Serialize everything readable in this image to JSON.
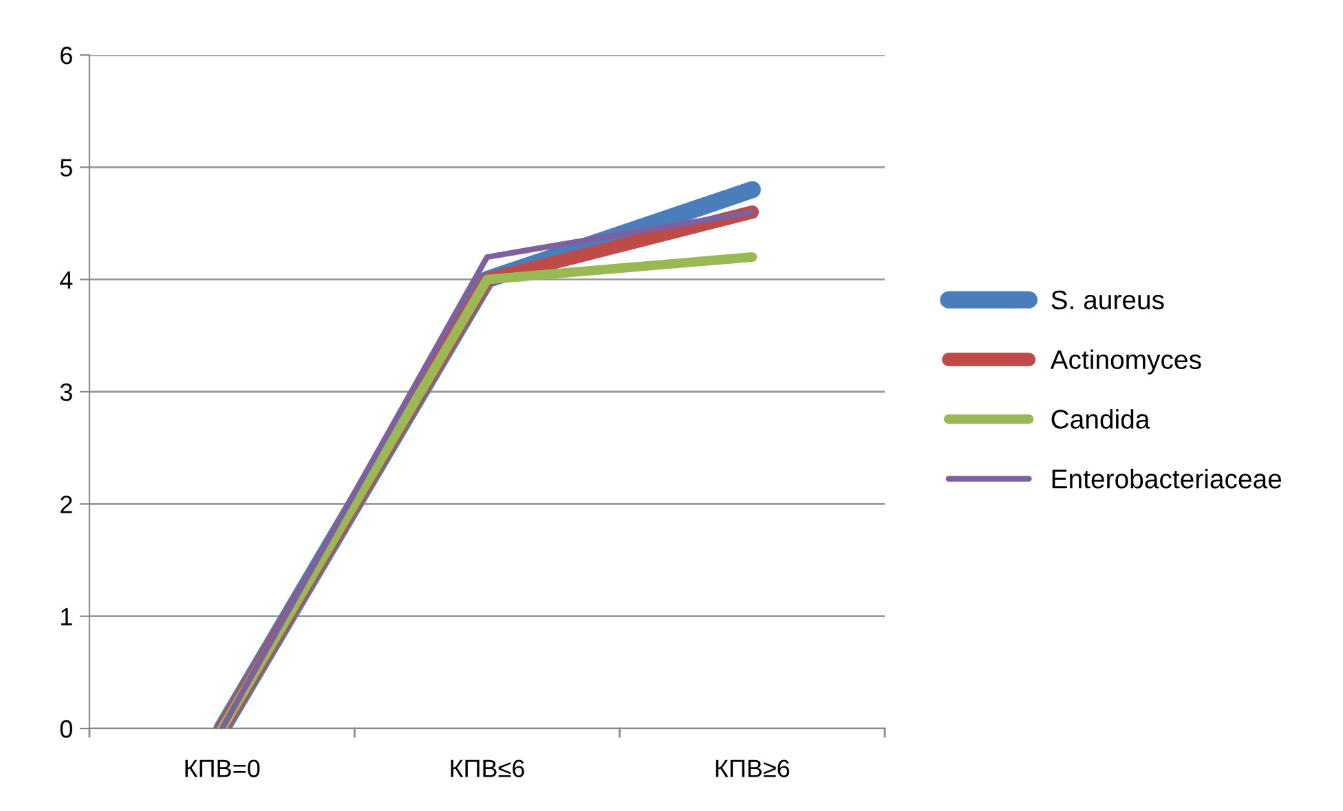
{
  "chart_data": {
    "type": "line",
    "categories": [
      "КПВ=0",
      "КПВ≤6",
      "КПВ≥6"
    ],
    "series": [
      {
        "name": "S. aureus",
        "color": "#4a7ebb",
        "values": [
          0,
          4,
          4.8
        ]
      },
      {
        "name": "Actinomyces",
        "color": "#be4b48",
        "values": [
          0,
          4,
          4.6
        ]
      },
      {
        "name": "Candida",
        "color": "#98b954",
        "values": [
          0,
          4,
          4.2
        ]
      },
      {
        "name": "Enterobacteriaceae",
        "color": "#7d60a0",
        "values": [
          0,
          4.2,
          4.6
        ]
      }
    ],
    "ylim": [
      0,
      6
    ],
    "yticks": [
      0,
      1,
      2,
      3,
      4,
      5,
      6
    ],
    "grid": "y",
    "legend": "right",
    "marker": "none",
    "line_style": "solid"
  }
}
